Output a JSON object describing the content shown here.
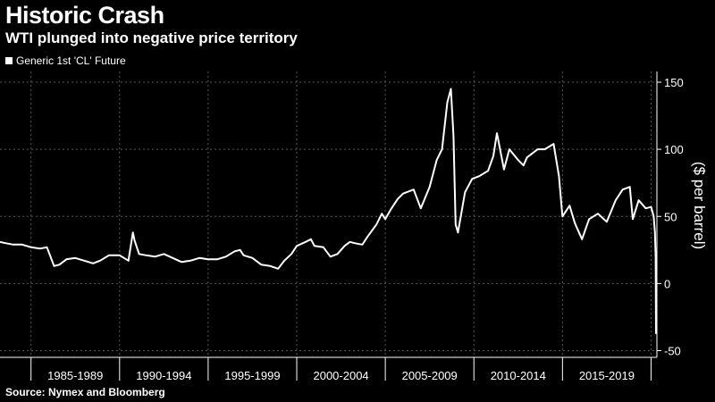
{
  "header": {
    "title": "Historic Crash",
    "subtitle": "WTI plunged into negative price territory"
  },
  "legend": {
    "label": "Generic 1st 'CL' Future"
  },
  "source": "Source: Nymex and Bloomberg",
  "colors": {
    "background": "#000000",
    "line": "#ffffff",
    "grid": "#5a5a5a",
    "text": "#ffffff"
  },
  "chart_data": {
    "type": "line",
    "title": "Historic Crash",
    "subtitle": "WTI plunged into negative price territory",
    "ylabel": "($ per barrel)",
    "ylim": [
      -55,
      158
    ],
    "xlim": [
      1983.25,
      2020.33
    ],
    "yticks": [
      -50,
      0,
      50,
      100,
      150
    ],
    "ytick_labels": [
      "-50",
      "0",
      "50",
      "100",
      "150"
    ],
    "xtick_labels": [
      "1985-1989",
      "1990-1994",
      "1995-1999",
      "2000-2004",
      "2005-2009",
      "2010-2014",
      "2015-2019"
    ],
    "grid": true,
    "legend_position": "top-left",
    "series": [
      {
        "name": "Generic 1st 'CL' Future",
        "x": [
          1983.25,
          1983.6,
          1984.0,
          1984.5,
          1985.0,
          1985.5,
          1985.9,
          1986.1,
          1986.3,
          1986.6,
          1987.0,
          1987.5,
          1988.0,
          1988.5,
          1988.9,
          1989.4,
          1990.0,
          1990.5,
          1990.75,
          1990.85,
          1991.1,
          1991.5,
          1992.0,
          1992.5,
          1993.0,
          1993.5,
          1994.0,
          1994.5,
          1995.0,
          1995.5,
          1996.0,
          1996.5,
          1996.8,
          1997.0,
          1997.5,
          1998.0,
          1998.5,
          1998.95,
          1999.3,
          1999.7,
          2000.0,
          2000.5,
          2000.8,
          2001.0,
          2001.5,
          2001.9,
          2002.3,
          2002.7,
          2003.0,
          2003.3,
          2003.7,
          2004.0,
          2004.5,
          2004.8,
          2005.0,
          2005.3,
          2005.7,
          2006.0,
          2006.6,
          2007.0,
          2007.5,
          2007.9,
          2008.2,
          2008.5,
          2008.7,
          2008.85,
          2008.97,
          2009.1,
          2009.5,
          2009.9,
          2010.3,
          2010.8,
          2011.1,
          2011.3,
          2011.7,
          2012.0,
          2012.5,
          2012.8,
          2013.0,
          2013.6,
          2014.0,
          2014.5,
          2014.8,
          2015.0,
          2015.4,
          2015.7,
          2016.1,
          2016.5,
          2017.0,
          2017.5,
          2018.0,
          2018.4,
          2018.8,
          2018.97,
          2019.3,
          2019.7,
          2020.0,
          2020.15,
          2020.22,
          2020.26,
          2020.28,
          2020.3
        ],
        "y": [
          31,
          30,
          29,
          29,
          27,
          26,
          27,
          20,
          13,
          14,
          18,
          19,
          17,
          15,
          17,
          21,
          21,
          17,
          38,
          32,
          22,
          21,
          20,
          22,
          19,
          16,
          17,
          19,
          18,
          18,
          20,
          24,
          25,
          21,
          19,
          14,
          13,
          11,
          17,
          22,
          28,
          31,
          33,
          28,
          27,
          20,
          22,
          28,
          31,
          30,
          29,
          35,
          44,
          52,
          48,
          55,
          63,
          67,
          70,
          56,
          72,
          92,
          100,
          135,
          145,
          110,
          44,
          38,
          68,
          78,
          80,
          84,
          95,
          112,
          85,
          100,
          92,
          88,
          94,
          100,
          100,
          104,
          80,
          50,
          58,
          45,
          33,
          48,
          52,
          46,
          62,
          70,
          72,
          48,
          62,
          56,
          57,
          50,
          38,
          20,
          -37,
          20
        ]
      }
    ]
  }
}
